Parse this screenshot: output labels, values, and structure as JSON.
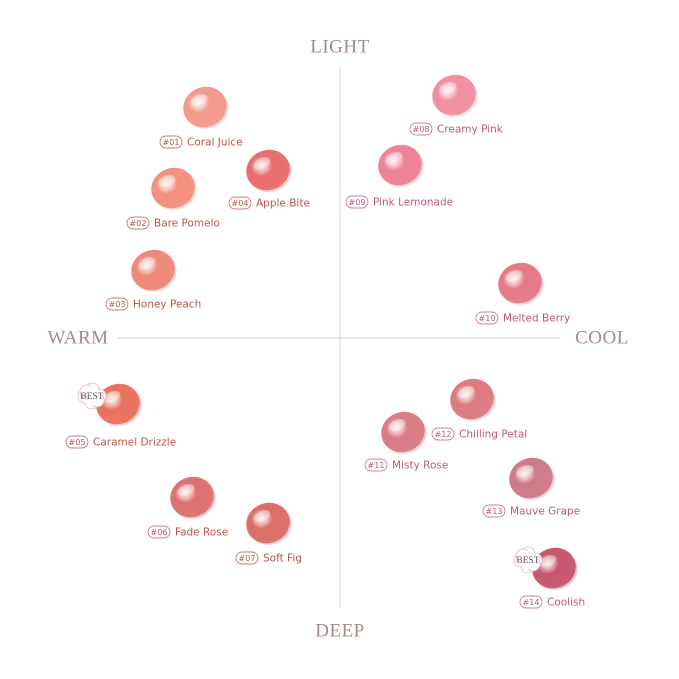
{
  "axes": {
    "top": "LIGHT",
    "bottom": "DEEP",
    "left": "WARM",
    "right": "COOL"
  },
  "shades": [
    {
      "number": "#01",
      "name": "Coral Juice",
      "color": "#f29a8c"
    },
    {
      "number": "#02",
      "name": "Bare Pomelo",
      "color": "#f2907c"
    },
    {
      "number": "#03",
      "name": "Honey Peach",
      "color": "#ee8878"
    },
    {
      "number": "#04",
      "name": "Apple Bite",
      "color": "#ea6e6e"
    },
    {
      "number": "#05",
      "name": "Caramel Drizzle",
      "color": "#e9725e",
      "badge": "BEST"
    },
    {
      "number": "#06",
      "name": "Fade Rose",
      "color": "#dc7270"
    },
    {
      "number": "#07",
      "name": "Soft Fig",
      "color": "#dc6e66"
    },
    {
      "number": "#08",
      "name": "Creamy Pink",
      "color": "#f08fa0"
    },
    {
      "number": "#09",
      "name": "Pink Lemonade",
      "color": "#ee8294"
    },
    {
      "number": "#10",
      "name": "Melted Berry",
      "color": "#e57a86"
    },
    {
      "number": "#11",
      "name": "Misty Rose",
      "color": "#d97c86"
    },
    {
      "number": "#12",
      "name": "Chilling Petal",
      "color": "#dc7a80"
    },
    {
      "number": "#13",
      "name": "Mauve Grape",
      "color": "#cf7a8a"
    },
    {
      "number": "#14",
      "name": "Coolish",
      "color": "#c75670",
      "badge": "BEST"
    }
  ]
}
